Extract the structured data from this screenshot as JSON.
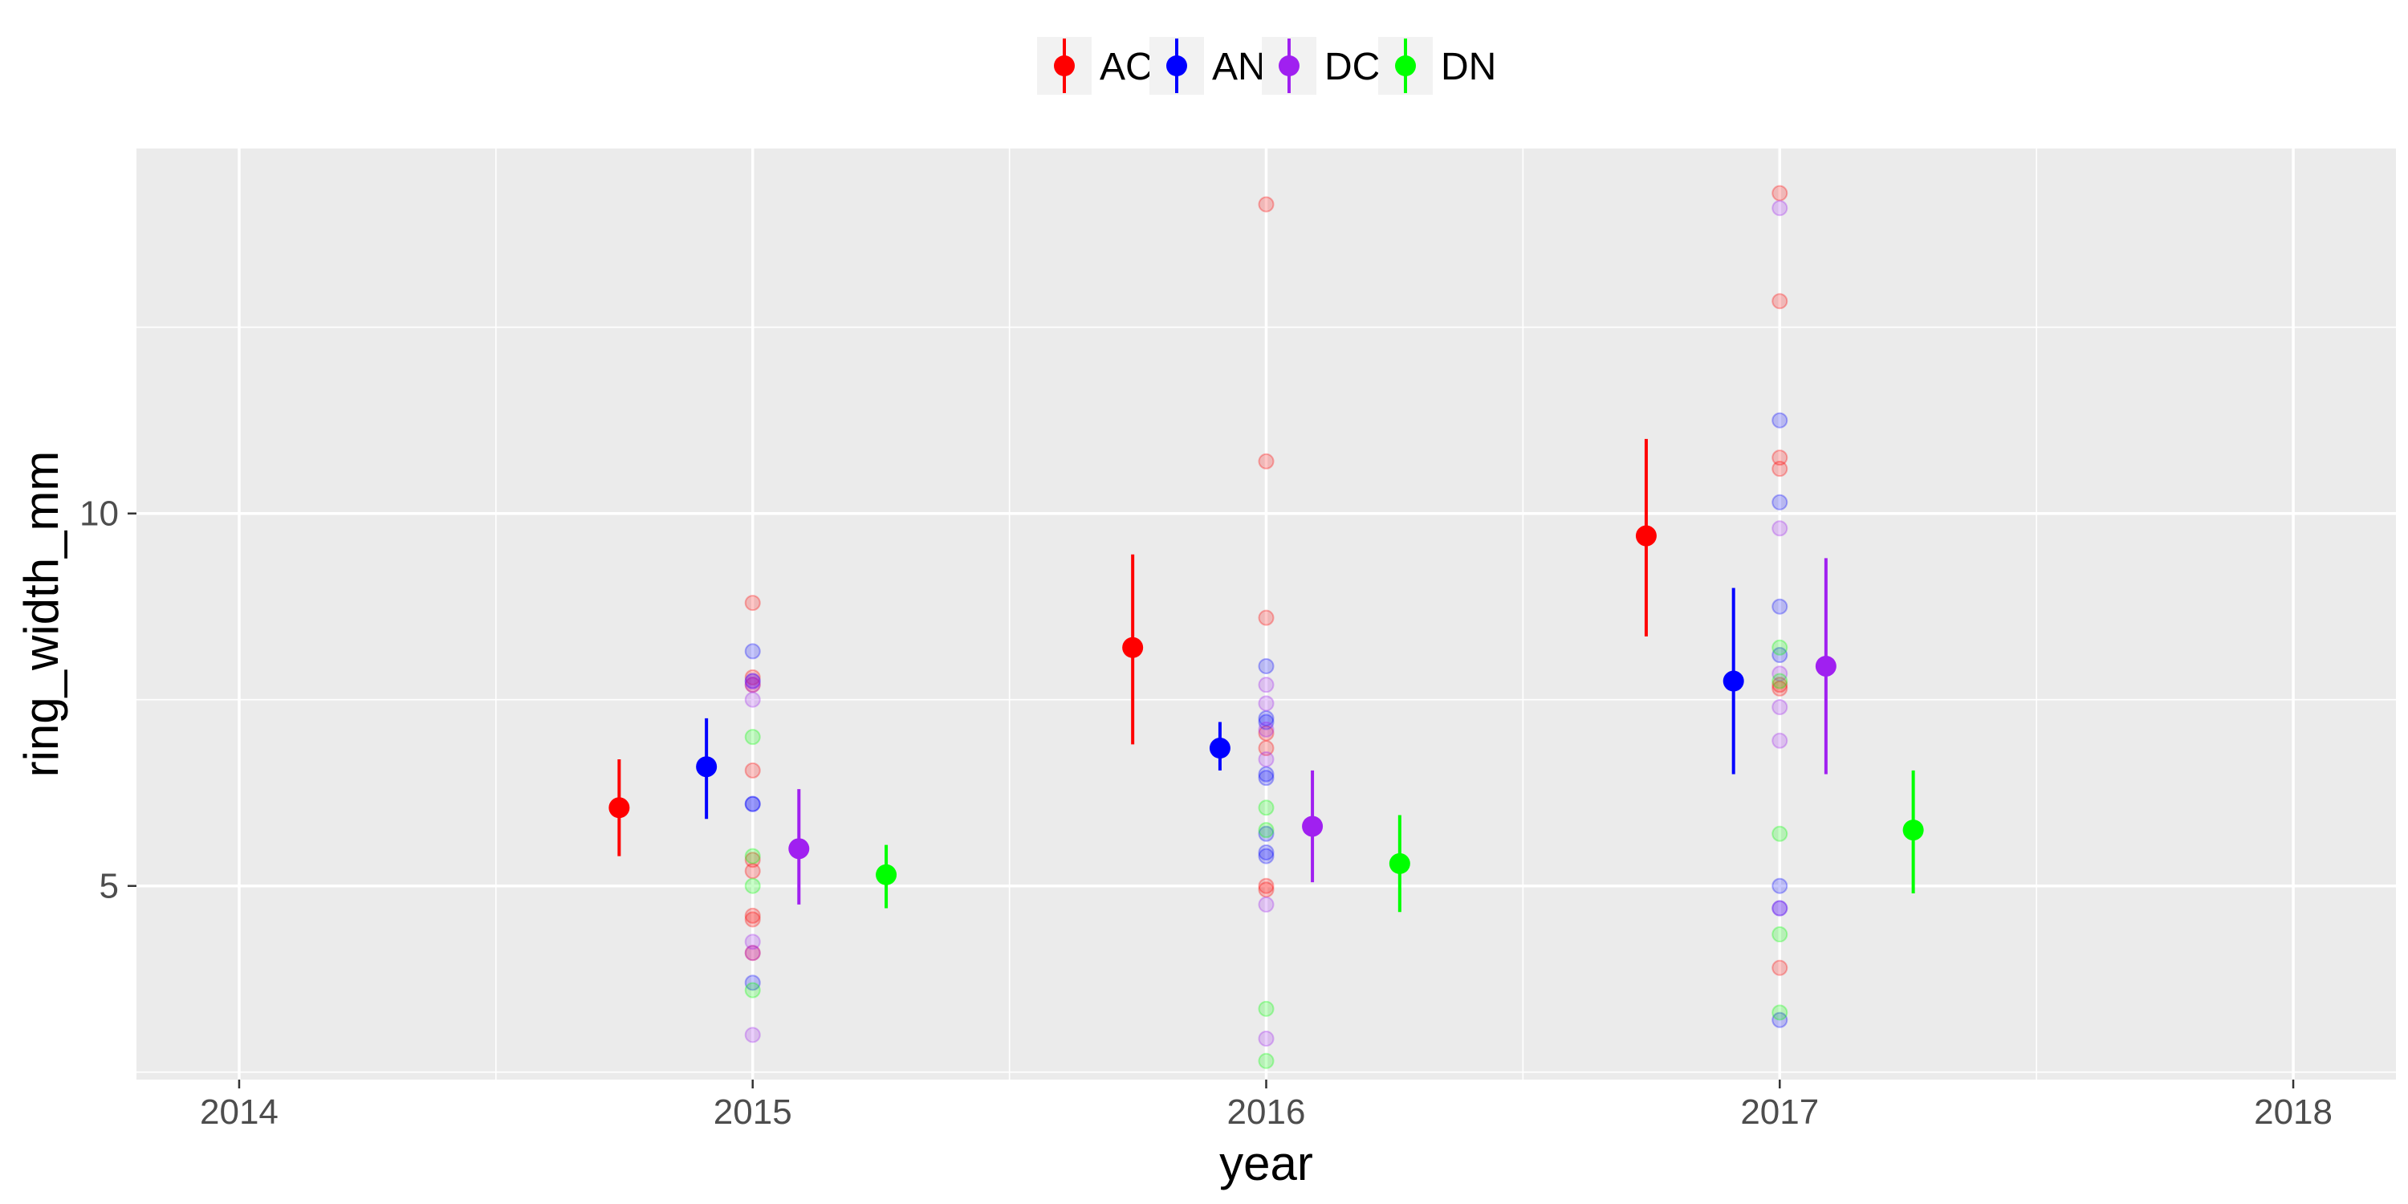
{
  "chart_data": {
    "type": "scatter",
    "xlabel": "year",
    "ylabel": "ring_width_mm",
    "xlim": [
      2013.8,
      2018.2
    ],
    "ylim": [
      2.4,
      14.9
    ],
    "x_ticks": [
      2014,
      2015,
      2016,
      2017,
      2018
    ],
    "x_tick_labels": [
      "2014",
      "2015",
      "2016",
      "2017",
      "2018"
    ],
    "y_ticks": [
      5,
      10
    ],
    "y_tick_labels": [
      "5",
      "10"
    ],
    "grid": true,
    "legend_position": "top",
    "series": [
      {
        "name": "AC",
        "color": "#ff0000",
        "summary": [
          {
            "x": 2015,
            "mean": 6.05,
            "low": 5.4,
            "high": 6.7
          },
          {
            "x": 2016,
            "mean": 8.2,
            "low": 6.9,
            "high": 9.45
          },
          {
            "x": 2017,
            "mean": 9.7,
            "low": 8.35,
            "high": 11.0
          }
        ],
        "points": [
          {
            "x": 2015,
            "y": [
              8.8,
              7.8,
              7.7,
              6.55,
              5.35,
              5.2,
              4.6,
              4.55,
              4.1
            ]
          },
          {
            "x": 2016,
            "y": [
              14.15,
              10.7,
              8.6,
              7.05,
              6.85,
              5.0,
              4.95
            ]
          },
          {
            "x": 2017,
            "y": [
              14.3,
              12.85,
              10.75,
              10.6,
              7.7,
              7.65,
              3.9
            ]
          }
        ]
      },
      {
        "name": "AN",
        "color": "#0000ff",
        "summary": [
          {
            "x": 2015,
            "mean": 6.6,
            "low": 5.9,
            "high": 7.25
          },
          {
            "x": 2016,
            "mean": 6.85,
            "low": 6.55,
            "high": 7.2
          },
          {
            "x": 2017,
            "mean": 7.75,
            "low": 6.5,
            "high": 9.0
          }
        ],
        "points": [
          {
            "x": 2015,
            "y": [
              8.15,
              7.75,
              6.1,
              6.1,
              3.7
            ]
          },
          {
            "x": 2016,
            "y": [
              7.95,
              7.25,
              7.2,
              6.5,
              6.45,
              5.7,
              5.45,
              5.4
            ]
          },
          {
            "x": 2017,
            "y": [
              11.25,
              10.15,
              8.75,
              8.1,
              5.0,
              4.7,
              3.2
            ]
          }
        ]
      },
      {
        "name": "DC",
        "color": "#a020f0",
        "summary": [
          {
            "x": 2015,
            "mean": 5.5,
            "low": 4.75,
            "high": 6.3
          },
          {
            "x": 2016,
            "mean": 5.8,
            "low": 5.05,
            "high": 6.55
          },
          {
            "x": 2017,
            "mean": 7.95,
            "low": 6.5,
            "high": 9.4
          }
        ],
        "points": [
          {
            "x": 2015,
            "y": [
              7.75,
              7.7,
              7.5,
              4.25,
              4.1,
              3.0
            ]
          },
          {
            "x": 2016,
            "y": [
              7.7,
              7.45,
              7.1,
              6.7,
              4.75,
              2.95
            ]
          },
          {
            "x": 2017,
            "y": [
              14.1,
              9.8,
              7.85,
              7.4,
              6.95,
              4.7
            ]
          }
        ]
      },
      {
        "name": "DN",
        "color": "#00ff00",
        "summary": [
          {
            "x": 2015,
            "mean": 5.15,
            "low": 4.7,
            "high": 5.55
          },
          {
            "x": 2016,
            "mean": 5.3,
            "low": 4.65,
            "high": 5.95
          },
          {
            "x": 2017,
            "mean": 5.75,
            "low": 4.9,
            "high": 6.55
          }
        ],
        "points": [
          {
            "x": 2015,
            "y": [
              7.0,
              5.4,
              5.0,
              3.6
            ]
          },
          {
            "x": 2016,
            "y": [
              6.05,
              5.75,
              3.35,
              2.65
            ]
          },
          {
            "x": 2017,
            "y": [
              8.2,
              7.75,
              5.7,
              4.35,
              3.3
            ]
          }
        ]
      }
    ]
  }
}
